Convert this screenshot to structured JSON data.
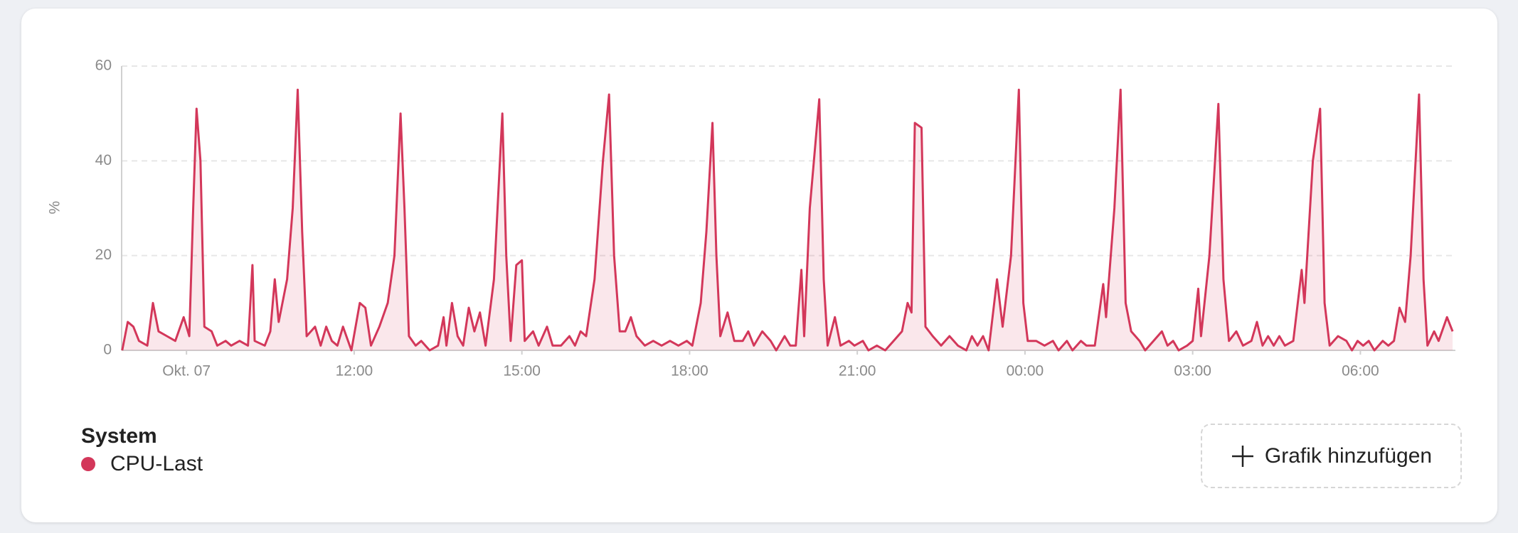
{
  "chart_data": {
    "type": "line",
    "ylabel": "%",
    "legend_title": "System",
    "ylim": [
      0,
      60
    ],
    "yticks": [
      0,
      20,
      40,
      60
    ],
    "grid": true,
    "xlim": [
      7.84,
      31.7
    ],
    "xticks": [
      {
        "value": 9,
        "label": "Okt. 07"
      },
      {
        "value": 12,
        "label": "12:00"
      },
      {
        "value": 15,
        "label": "15:00"
      },
      {
        "value": 18,
        "label": "18:00"
      },
      {
        "value": 21,
        "label": "21:00"
      },
      {
        "value": 24,
        "label": "00:00"
      },
      {
        "value": 27,
        "label": "03:00"
      },
      {
        "value": 30,
        "label": "06:00"
      }
    ],
    "x": [
      7.85,
      7.95,
      8.05,
      8.15,
      8.3,
      8.4,
      8.5,
      8.65,
      8.8,
      8.95,
      9.05,
      9.12,
      9.18,
      9.25,
      9.32,
      9.45,
      9.55,
      9.7,
      9.8,
      9.95,
      10.1,
      10.18,
      10.22,
      10.4,
      10.5,
      10.58,
      10.65,
      10.8,
      10.9,
      10.99,
      11.07,
      11.15,
      11.3,
      11.4,
      11.5,
      11.6,
      11.7,
      11.8,
      11.95,
      12.1,
      12.2,
      12.3,
      12.45,
      12.6,
      12.72,
      12.83,
      12.9,
      12.98,
      13.1,
      13.2,
      13.35,
      13.5,
      13.6,
      13.65,
      13.75,
      13.85,
      13.95,
      14.05,
      14.15,
      14.25,
      14.35,
      14.5,
      14.65,
      14.72,
      14.8,
      14.9,
      15.0,
      15.05,
      15.2,
      15.3,
      15.45,
      15.55,
      15.7,
      15.85,
      15.95,
      16.05,
      16.15,
      16.3,
      16.45,
      16.56,
      16.65,
      16.75,
      16.85,
      16.95,
      17.05,
      17.2,
      17.35,
      17.5,
      17.65,
      17.8,
      17.95,
      18.05,
      18.2,
      18.3,
      18.41,
      18.48,
      18.55,
      18.68,
      18.8,
      18.95,
      19.05,
      19.15,
      19.3,
      19.45,
      19.55,
      19.7,
      19.8,
      19.9,
      20.0,
      20.05,
      20.15,
      20.32,
      20.4,
      20.47,
      20.6,
      20.7,
      20.85,
      20.95,
      21.1,
      21.2,
      21.35,
      21.5,
      21.65,
      21.8,
      21.9,
      21.97,
      22.03,
      22.15,
      22.22,
      22.35,
      22.5,
      22.65,
      22.8,
      22.95,
      23.05,
      23.15,
      23.25,
      23.35,
      23.5,
      23.6,
      23.75,
      23.89,
      23.97,
      24.05,
      24.2,
      24.35,
      24.5,
      24.6,
      24.75,
      24.85,
      25.0,
      25.1,
      25.25,
      25.4,
      25.45,
      25.6,
      25.71,
      25.8,
      25.9,
      26.05,
      26.15,
      26.3,
      26.45,
      26.55,
      26.65,
      26.75,
      26.9,
      27.0,
      27.1,
      27.15,
      27.3,
      27.46,
      27.55,
      27.65,
      27.78,
      27.9,
      28.05,
      28.15,
      28.25,
      28.35,
      28.45,
      28.55,
      28.65,
      28.8,
      28.95,
      29.0,
      29.15,
      29.28,
      29.36,
      29.45,
      29.6,
      29.75,
      29.85,
      29.95,
      30.05,
      30.15,
      30.25,
      30.4,
      30.5,
      30.6,
      30.7,
      30.8,
      30.9,
      31.05,
      31.13,
      31.2,
      31.32,
      31.4,
      31.55,
      31.65
    ],
    "series": [
      {
        "name": "CPU-Last",
        "color": "#d3375a",
        "values": [
          0,
          6,
          5,
          2,
          1,
          10,
          4,
          3,
          2,
          7,
          3,
          30,
          51,
          40,
          5,
          4,
          1,
          2,
          1,
          2,
          1,
          18,
          2,
          1,
          4,
          15,
          6,
          15,
          30,
          55,
          25,
          3,
          5,
          1,
          5,
          2,
          1,
          5,
          0,
          10,
          9,
          1,
          5,
          10,
          20,
          50,
          30,
          3,
          1,
          2,
          0,
          1,
          7,
          1,
          10,
          3,
          1,
          9,
          4,
          8,
          1,
          15,
          50,
          20,
          2,
          18,
          19,
          2,
          4,
          1,
          5,
          1,
          1,
          3,
          1,
          4,
          3,
          15,
          40,
          54,
          20,
          4,
          4,
          7,
          3,
          1,
          2,
          1,
          2,
          1,
          2,
          1,
          10,
          25,
          48,
          20,
          3,
          8,
          2,
          2,
          4,
          1,
          4,
          2,
          0,
          3,
          1,
          1,
          17,
          3,
          30,
          53,
          15,
          1,
          7,
          1,
          2,
          1,
          2,
          0,
          1,
          0,
          2,
          4,
          10,
          8,
          48,
          47,
          5,
          3,
          1,
          3,
          1,
          0,
          3,
          1,
          3,
          0,
          15,
          5,
          20,
          55,
          10,
          2,
          2,
          1,
          2,
          0,
          2,
          0,
          2,
          1,
          1,
          14,
          7,
          30,
          55,
          10,
          4,
          2,
          0,
          2,
          4,
          1,
          2,
          0,
          1,
          2,
          13,
          3,
          20,
          52,
          15,
          2,
          4,
          1,
          2,
          6,
          1,
          3,
          1,
          3,
          1,
          2,
          17,
          10,
          40,
          51,
          10,
          1,
          3,
          2,
          0,
          2,
          1,
          2,
          0,
          2,
          1,
          2,
          9,
          6,
          20,
          54,
          15,
          1,
          4,
          2,
          7,
          4
        ]
      }
    ]
  },
  "add_button": "Grafik hinzufügen"
}
